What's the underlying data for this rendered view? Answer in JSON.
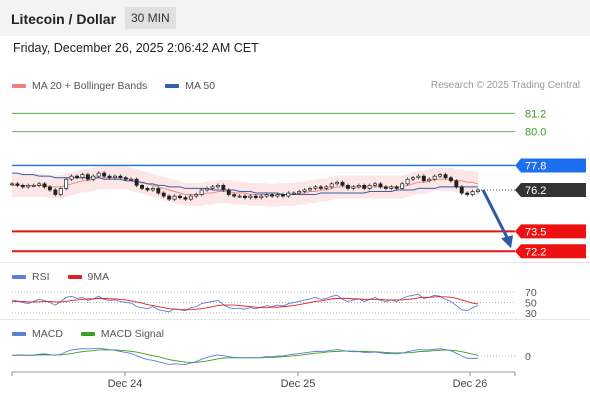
{
  "header": {
    "title": "Litecoin / Dollar",
    "interval": "30 MIN"
  },
  "datetime": "Friday, December 26, 2025 2:06:42 AM CET",
  "legend": {
    "main": [
      {
        "label": "MA 20 + Bollinger Bands",
        "color": "#f08080"
      },
      {
        "label": "MA 50",
        "color": "#3a5ea8"
      }
    ],
    "rsi": [
      {
        "label": "RSI",
        "color": "#5b7fd6"
      },
      {
        "label": "9MA",
        "color": "#e02020"
      }
    ],
    "macd": [
      {
        "label": "MACD",
        "color": "#5b7fd6"
      },
      {
        "label": "MACD Signal",
        "color": "#3aa020"
      }
    ]
  },
  "research": "Research © 2025 Trading Central",
  "chart_data": {
    "type": "line",
    "title": "Litecoin / Dollar",
    "ylim": [
      71.5,
      82.2
    ],
    "levels": [
      {
        "value": 81.2,
        "label": "81.2",
        "kind": "target",
        "color": "#3aa020"
      },
      {
        "value": 80.0,
        "label": "80.0",
        "kind": "target",
        "color": "#3aa020"
      },
      {
        "value": 77.8,
        "label": "77.8",
        "kind": "pivot",
        "color": "#1e6ef0"
      },
      {
        "value": 76.2,
        "label": "76.2",
        "kind": "last",
        "color": "#333333"
      },
      {
        "value": 73.5,
        "label": "73.5",
        "kind": "support",
        "color": "#ee1111"
      },
      {
        "value": 72.2,
        "label": "72.2",
        "kind": "support",
        "color": "#ee1111"
      }
    ],
    "x_ticks": [
      "Dec 24",
      "Dec 25",
      "Dec 26"
    ],
    "price": [
      76.6,
      76.5,
      76.4,
      76.5,
      76.5,
      76.6,
      76.4,
      76.2,
      75.9,
      76.3,
      76.9,
      77.1,
      77.0,
      77.2,
      76.9,
      77.1,
      77.3,
      77.1,
      77.0,
      77.1,
      77.0,
      76.9,
      76.9,
      76.5,
      76.3,
      76.2,
      76.3,
      76.0,
      75.8,
      75.6,
      75.8,
      75.7,
      75.6,
      75.8,
      75.9,
      76.2,
      76.3,
      76.4,
      76.5,
      76.2,
      75.9,
      75.8,
      75.8,
      75.7,
      75.8,
      75.7,
      75.8,
      75.9,
      75.8,
      75.9,
      75.8,
      76.0,
      76.0,
      76.1,
      76.2,
      76.3,
      76.4,
      76.3,
      76.4,
      76.6,
      76.7,
      76.5,
      76.3,
      76.4,
      76.5,
      76.3,
      76.5,
      76.6,
      76.4,
      76.3,
      76.4,
      76.3,
      76.6,
      76.9,
      77.0,
      77.1,
      76.8,
      76.9,
      77.1,
      77.2,
      77.0,
      76.8,
      76.4,
      76.0,
      75.9,
      76.1,
      76.2
    ],
    "ma20": [
      76.5,
      76.5,
      76.5,
      76.5,
      76.5,
      76.5,
      76.5,
      76.4,
      76.4,
      76.4,
      76.5,
      76.6,
      76.7,
      76.8,
      76.8,
      76.9,
      77.0,
      77.0,
      77.0,
      77.0,
      77.0,
      77.0,
      76.9,
      76.8,
      76.7,
      76.6,
      76.5,
      76.4,
      76.3,
      76.2,
      76.1,
      76.0,
      75.9,
      75.9,
      75.9,
      75.9,
      76.0,
      76.0,
      76.1,
      76.1,
      76.1,
      76.0,
      76.0,
      76.0,
      75.9,
      75.9,
      75.9,
      75.9,
      75.8,
      75.9,
      75.9,
      75.9,
      75.9,
      76.0,
      76.0,
      76.1,
      76.1,
      76.2,
      76.2,
      76.3,
      76.4,
      76.4,
      76.4,
      76.4,
      76.4,
      76.4,
      76.4,
      76.4,
      76.4,
      76.4,
      76.4,
      76.4,
      76.4,
      76.5,
      76.6,
      76.7,
      76.7,
      76.8,
      76.9,
      76.9,
      76.9,
      76.9,
      76.8,
      76.8,
      76.7,
      76.7,
      76.6
    ],
    "ma50": [
      77.3,
      77.3,
      77.2,
      77.2,
      77.2,
      77.1,
      77.1,
      77.1,
      77.0,
      77.0,
      77.0,
      77.0,
      77.0,
      77.0,
      77.0,
      77.0,
      77.0,
      76.9,
      76.9,
      76.9,
      76.9,
      76.8,
      76.8,
      76.7,
      76.7,
      76.6,
      76.6,
      76.5,
      76.5,
      76.4,
      76.4,
      76.4,
      76.3,
      76.3,
      76.3,
      76.3,
      76.3,
      76.2,
      76.2,
      76.2,
      76.2,
      76.2,
      76.1,
      76.1,
      76.1,
      76.0,
      76.0,
      76.0,
      76.0,
      76.0,
      75.9,
      75.9,
      75.9,
      75.9,
      75.9,
      75.9,
      75.9,
      76.0,
      76.0,
      76.0,
      76.0,
      76.0,
      76.0,
      76.0,
      76.0,
      76.0,
      76.1,
      76.1,
      76.1,
      76.1,
      76.1,
      76.2,
      76.2,
      76.2,
      76.2,
      76.3,
      76.3,
      76.3,
      76.3,
      76.4,
      76.4,
      76.4,
      76.4,
      76.4,
      76.4,
      76.4,
      76.4
    ],
    "bb_width": 0.75,
    "forecast": {
      "from": 76.2,
      "to": 72.2
    },
    "rsi": {
      "levels": [
        70,
        50,
        30
      ],
      "ylim": [
        20,
        80
      ],
      "rsi": [
        55,
        53,
        50,
        48,
        52,
        56,
        54,
        50,
        45,
        52,
        60,
        62,
        58,
        60,
        54,
        57,
        62,
        56,
        54,
        55,
        52,
        50,
        49,
        42,
        40,
        38,
        42,
        36,
        34,
        32,
        38,
        36,
        34,
        40,
        42,
        48,
        50,
        52,
        54,
        46,
        40,
        38,
        39,
        37,
        40,
        38,
        41,
        44,
        42,
        45,
        43,
        48,
        50,
        52,
        55,
        57,
        60,
        56,
        58,
        62,
        64,
        56,
        52,
        55,
        57,
        52,
        56,
        60,
        54,
        52,
        55,
        52,
        58,
        62,
        64,
        66,
        58,
        60,
        64,
        62,
        56,
        52,
        44,
        36,
        34,
        40,
        44
      ],
      "ma9": [
        52,
        52,
        52,
        51,
        51,
        51,
        52,
        52,
        51,
        51,
        52,
        54,
        55,
        56,
        57,
        57,
        58,
        58,
        57,
        57,
        56,
        55,
        53,
        51,
        49,
        46,
        44,
        42,
        40,
        38,
        37,
        36,
        36,
        36,
        37,
        38,
        40,
        42,
        44,
        45,
        45,
        45,
        44,
        43,
        42,
        41,
        40,
        40,
        41,
        41,
        42,
        43,
        44,
        46,
        48,
        50,
        52,
        53,
        55,
        57,
        58,
        58,
        58,
        57,
        57,
        56,
        56,
        56,
        56,
        55,
        55,
        55,
        55,
        56,
        57,
        59,
        60,
        60,
        61,
        61,
        61,
        60,
        58,
        55,
        52,
        49,
        47
      ]
    },
    "macd": {
      "levels": [
        0
      ],
      "ylim": [
        -0.45,
        0.45
      ],
      "macd": [
        0.02,
        0.03,
        0.03,
        0.02,
        0.03,
        0.05,
        0.06,
        0.04,
        0.02,
        0.05,
        0.12,
        0.17,
        0.19,
        0.21,
        0.2,
        0.21,
        0.22,
        0.2,
        0.18,
        0.16,
        0.13,
        0.1,
        0.07,
        0.01,
        -0.05,
        -0.1,
        -0.12,
        -0.16,
        -0.2,
        -0.24,
        -0.22,
        -0.23,
        -0.24,
        -0.2,
        -0.16,
        -0.09,
        -0.04,
        0.0,
        0.03,
        0.01,
        -0.02,
        -0.04,
        -0.04,
        -0.05,
        -0.04,
        -0.05,
        -0.04,
        -0.02,
        -0.02,
        0.0,
        0.0,
        0.03,
        0.05,
        0.07,
        0.09,
        0.11,
        0.13,
        0.13,
        0.14,
        0.16,
        0.18,
        0.16,
        0.13,
        0.12,
        0.12,
        0.1,
        0.1,
        0.11,
        0.09,
        0.07,
        0.07,
        0.06,
        0.08,
        0.12,
        0.15,
        0.18,
        0.17,
        0.17,
        0.19,
        0.2,
        0.18,
        0.15,
        0.08,
        0.0,
        -0.06,
        -0.07,
        -0.06
      ],
      "signal": [
        0.02,
        0.02,
        0.02,
        0.02,
        0.02,
        0.03,
        0.03,
        0.03,
        0.03,
        0.03,
        0.05,
        0.07,
        0.1,
        0.12,
        0.14,
        0.15,
        0.17,
        0.17,
        0.17,
        0.17,
        0.16,
        0.15,
        0.13,
        0.11,
        0.08,
        0.04,
        0.01,
        -0.02,
        -0.06,
        -0.1,
        -0.13,
        -0.15,
        -0.17,
        -0.18,
        -0.18,
        -0.16,
        -0.14,
        -0.11,
        -0.08,
        -0.06,
        -0.05,
        -0.05,
        -0.05,
        -0.05,
        -0.05,
        -0.05,
        -0.05,
        -0.04,
        -0.04,
        -0.03,
        -0.02,
        -0.01,
        0.01,
        0.02,
        0.04,
        0.06,
        0.08,
        0.09,
        0.11,
        0.12,
        0.13,
        0.14,
        0.14,
        0.14,
        0.13,
        0.13,
        0.12,
        0.12,
        0.11,
        0.1,
        0.09,
        0.09,
        0.09,
        0.09,
        0.1,
        0.12,
        0.13,
        0.14,
        0.15,
        0.16,
        0.17,
        0.16,
        0.15,
        0.12,
        0.09,
        0.05,
        0.02
      ]
    }
  }
}
